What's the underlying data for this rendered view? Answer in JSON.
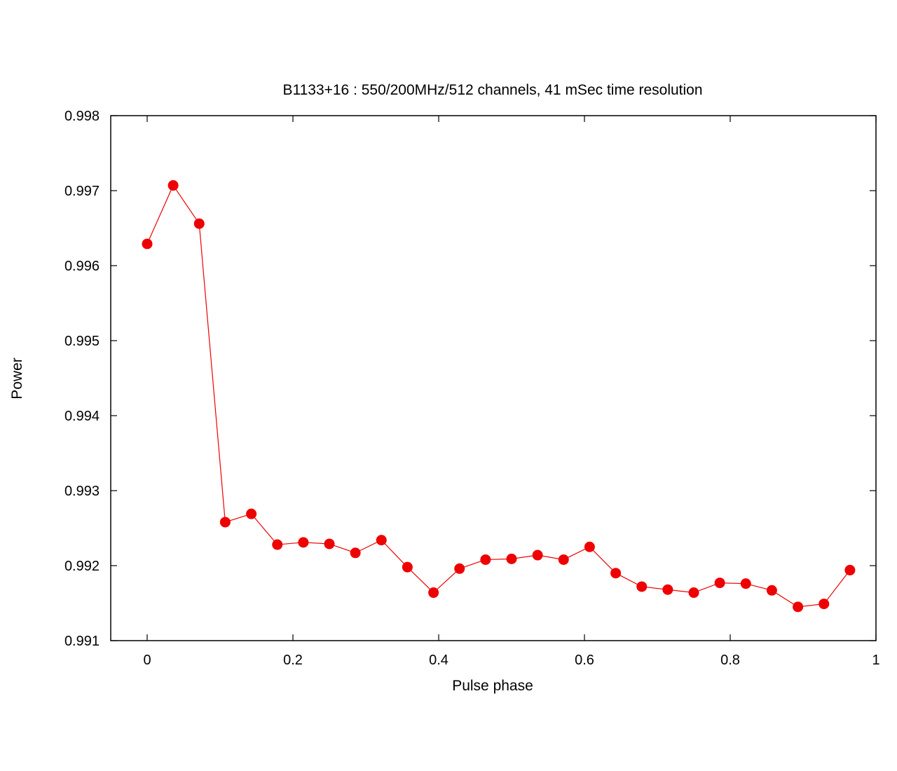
{
  "chart_data": {
    "type": "line",
    "title": "B1133+16 : 550/200MHz/512 channels, 41 mSec time resolution",
    "xlabel": "Pulse phase",
    "ylabel": "Power",
    "xlim": [
      -0.05,
      1.0
    ],
    "ylim": [
      0.991,
      0.998
    ],
    "xticks": [
      0,
      0.2,
      0.4,
      0.6,
      0.8,
      1
    ],
    "xtick_labels": [
      "0",
      "0.2",
      "0.4",
      "0.6",
      "0.8",
      "1"
    ],
    "yticks": [
      0.991,
      0.992,
      0.993,
      0.994,
      0.995,
      0.996,
      0.997,
      0.998
    ],
    "ytick_labels": [
      "0.991",
      "0.992",
      "0.993",
      "0.994",
      "0.995",
      "0.996",
      "0.997",
      "0.998"
    ],
    "grid": false,
    "series_color": "#ee0000",
    "series": [
      {
        "x": [
          0.0,
          0.0357,
          0.0714,
          0.1071,
          0.1429,
          0.1786,
          0.2143,
          0.25,
          0.2857,
          0.3214,
          0.3571,
          0.3929,
          0.4286,
          0.4643,
          0.5,
          0.5357,
          0.5714,
          0.6071,
          0.6429,
          0.6786,
          0.7143,
          0.75,
          0.7857,
          0.8214,
          0.8571,
          0.8929,
          0.9286,
          0.9643
        ],
        "values": [
          0.99629,
          0.99707,
          0.99656,
          0.99258,
          0.99269,
          0.99228,
          0.99231,
          0.99229,
          0.99217,
          0.99234,
          0.99198,
          0.99164,
          0.99196,
          0.99208,
          0.99209,
          0.99214,
          0.99208,
          0.99225,
          0.9919,
          0.99172,
          0.99168,
          0.99164,
          0.99177,
          0.99176,
          0.99167,
          0.99145,
          0.99149,
          0.99194
        ]
      }
    ]
  }
}
